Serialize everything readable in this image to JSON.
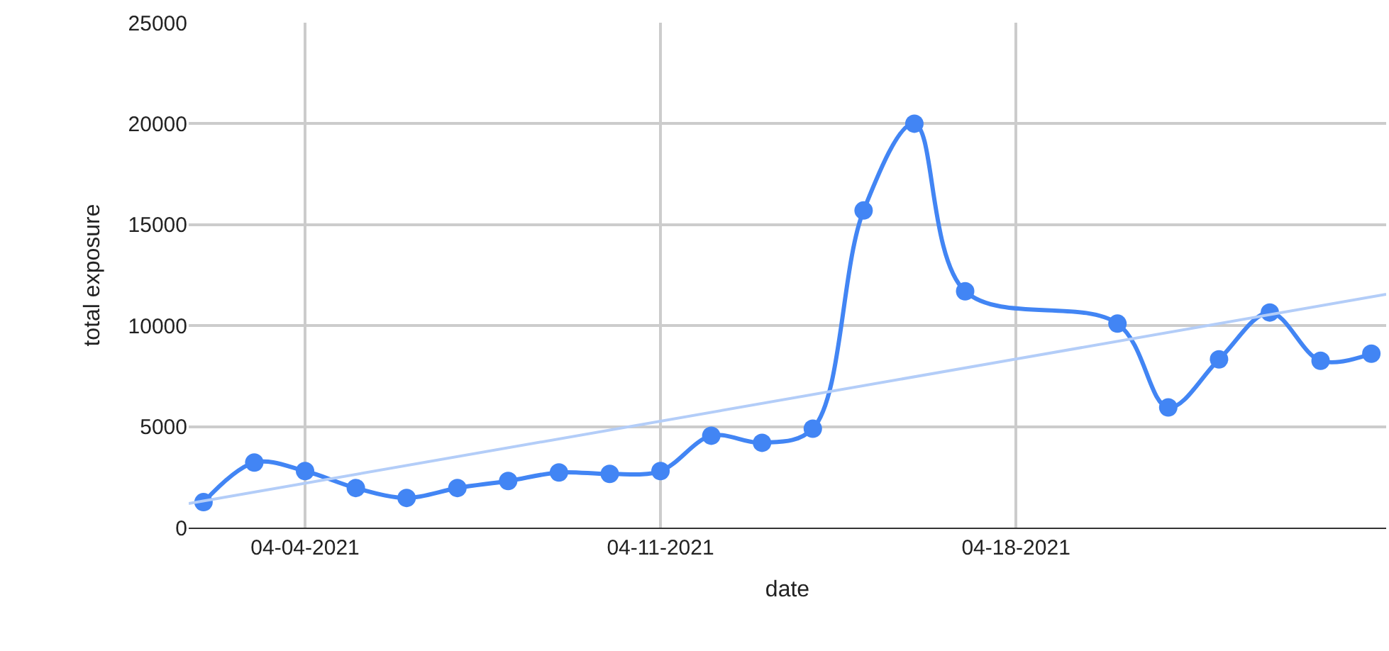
{
  "chart_data": {
    "type": "line",
    "xlabel": "date",
    "ylabel": "total exposure",
    "series": [
      {
        "color": "#4285f4",
        "marker": "circle",
        "x": [
          "2021-04-02",
          "2021-04-03",
          "2021-04-04",
          "2021-04-05",
          "2021-04-06",
          "2021-04-07",
          "2021-04-08",
          "2021-04-09",
          "2021-04-10",
          "2021-04-11",
          "2021-04-12",
          "2021-04-13",
          "2021-04-14",
          "2021-04-15",
          "2021-04-16",
          "2021-04-17",
          "2021-04-20",
          "2021-04-21",
          "2021-04-22",
          "2021-04-23",
          "2021-04-24",
          "2021-04-25"
        ],
        "values": [
          1260,
          3220,
          2800,
          1960,
          1470,
          1960,
          2310,
          2730,
          2660,
          2800,
          4550,
          4200,
          4900,
          15700,
          20000,
          11700,
          10100,
          5950,
          8330,
          10650,
          8260,
          8610
        ]
      },
      {
        "type": "line",
        "color": "#b3cdf8",
        "marker": "none",
        "x": [
          "2021-04-01T17:00",
          "2021-04-25T07:00"
        ],
        "values": [
          1190,
          11550
        ]
      }
    ],
    "xlim": [
      "2021-04-01T17:00",
      "2021-04-25T07:00"
    ],
    "xticks": [
      {
        "value": "2021-04-04",
        "label": "04-04-2021"
      },
      {
        "value": "2021-04-11",
        "label": "04-11-2021"
      },
      {
        "value": "2021-04-18",
        "label": "04-18-2021"
      }
    ],
    "ylim": [
      0,
      25000
    ],
    "yticks": [
      0,
      5000,
      10000,
      15000,
      20000,
      25000
    ],
    "grid": true
  }
}
